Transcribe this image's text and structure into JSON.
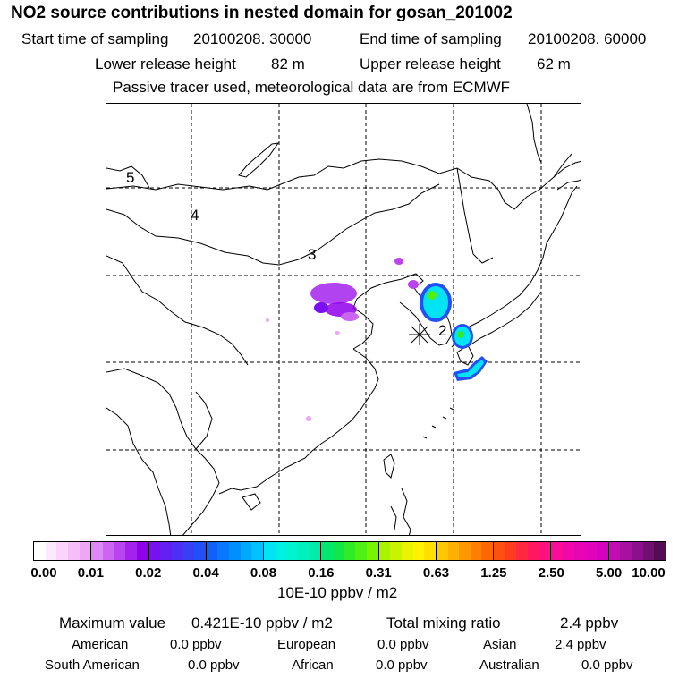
{
  "title": "NO2 source contributions in nested domain for gosan_201002",
  "sampling": {
    "start_label": "Start time of sampling",
    "start_value": "20100208. 30000",
    "end_label": "End time of sampling",
    "end_value": "20100208. 60000"
  },
  "release": {
    "lower_label": "Lower release height",
    "lower_value": "82 m",
    "upper_label": "Upper release height",
    "upper_value": "62 m"
  },
  "note": "Passive tracer used, meteorological data are from ECMWF",
  "map": {
    "region_labels": [
      "5",
      "4",
      "3",
      "2"
    ]
  },
  "colorbar": {
    "ticks": [
      "0.00",
      "0.01",
      "0.02",
      "0.04",
      "0.08",
      "0.16",
      "0.31",
      "0.63",
      "1.25",
      "2.50",
      "5.00",
      "10.00"
    ],
    "unit": "10E-10 ppbv / m2",
    "colors": [
      [
        "#ffffff",
        "#fde9fd",
        "#fad4fb",
        "#f4bef8",
        "#eda7f5"
      ],
      [
        "#dd88f4",
        "#cc66f2",
        "#b944f0",
        "#a422ee",
        "#8f00ec"
      ],
      [
        "#7a10f0",
        "#6420f2",
        "#4e30f4",
        "#3840f6",
        "#2250f8"
      ],
      [
        "#1060fa",
        "#0878fc",
        "#0090fd",
        "#00a8fe",
        "#00c0ff"
      ],
      [
        "#00e4f4",
        "#00f0e4",
        "#00f4d0",
        "#00f0bc",
        "#00ecaa"
      ],
      [
        "#00e86e",
        "#10e84a",
        "#30ec28",
        "#50f010",
        "#78f400"
      ],
      [
        "#a8f400",
        "#c8f400",
        "#e8f400",
        "#fff200",
        "#ffe000"
      ],
      [
        "#ffc800",
        "#ffb000",
        "#ff9800",
        "#ff8000",
        "#ff6800"
      ],
      [
        "#ff5010",
        "#ff3c20",
        "#ff2840",
        "#ff1860",
        "#ff1080"
      ],
      [
        "#f80c98",
        "#f008a8",
        "#e806b4",
        "#e004bc",
        "#d800c0"
      ],
      [
        "#c40cb4",
        "#a810a0",
        "#8c108c",
        "#701070",
        "#540c54"
      ]
    ]
  },
  "summary": {
    "max_label": "Maximum value",
    "max_value": "0.421E-10 ppbv / m2",
    "total_label": "Total mixing ratio",
    "total_value": "2.4 ppbv",
    "regions": [
      {
        "name": "American",
        "value": "0.0 ppbv"
      },
      {
        "name": "European",
        "value": "0.0 ppbv"
      },
      {
        "name": "Asian",
        "value": "2.4 ppbv"
      },
      {
        "name": "South American",
        "value": "0.0 ppbv"
      },
      {
        "name": "African",
        "value": "0.0 ppbv"
      },
      {
        "name": "Australian",
        "value": "0.0 ppbv"
      }
    ]
  }
}
